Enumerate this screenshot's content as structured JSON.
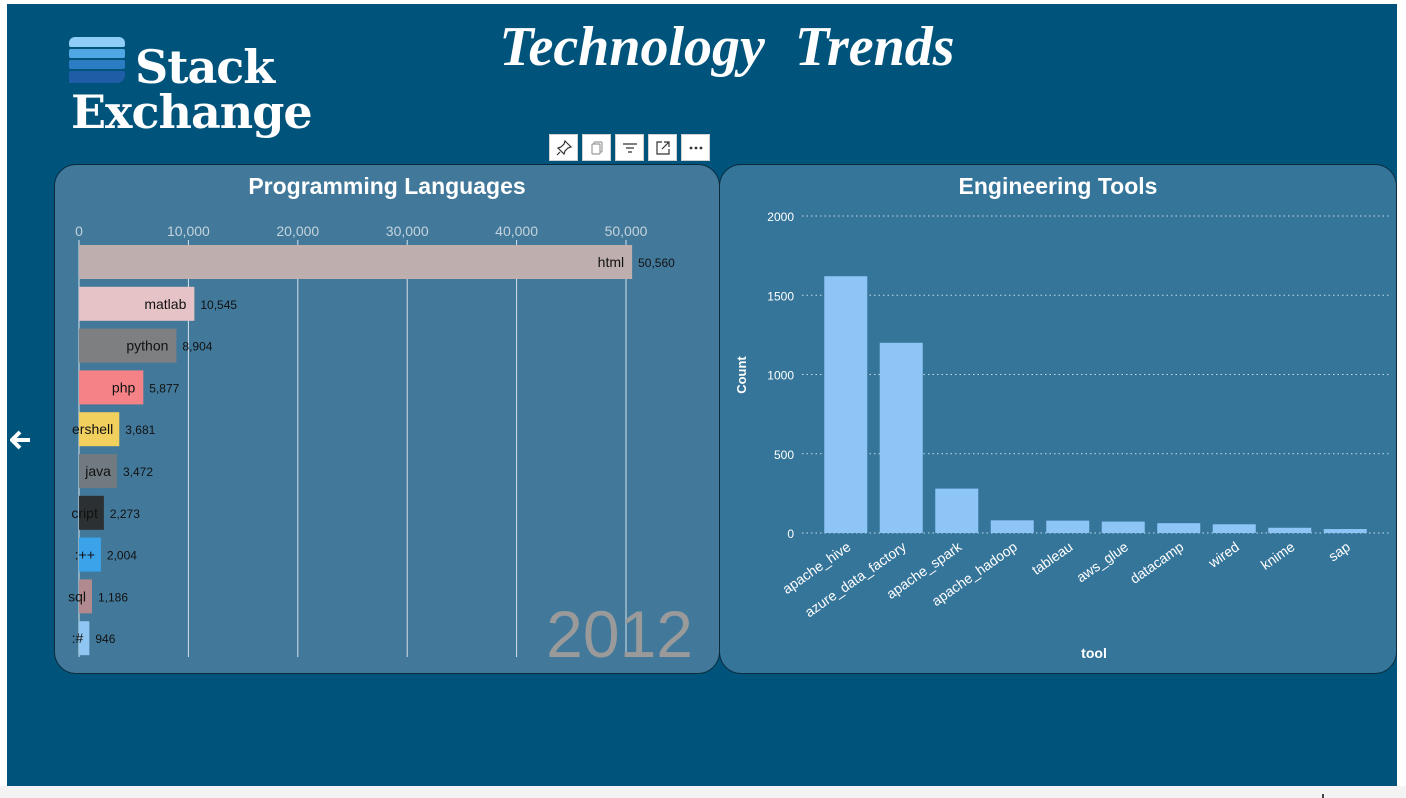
{
  "header": {
    "title": "Technology  Trends"
  },
  "logo": {
    "word1": "Stack",
    "word2": "Exchange",
    "colors": [
      "#8ecdf5",
      "#4fa8e3",
      "#2c7cc4",
      "#1f5ea6"
    ]
  },
  "toolbar": {
    "buttons": [
      "pin-icon",
      "copy-icon",
      "filter-icon",
      "focus-mode-icon",
      "more-options-icon"
    ]
  },
  "chart_data": [
    {
      "type": "bar",
      "orientation": "horizontal",
      "title": "Programming Languages",
      "period_label": "2012",
      "categories": [
        "html",
        "matlab",
        "python",
        "php",
        "powershell",
        "java",
        "javascript",
        "c++",
        "sql",
        "c#"
      ],
      "shown_labels": [
        "html",
        "matlab",
        "python",
        "php",
        "ershell",
        "java",
        "cript",
        ":++",
        "sql",
        ":#"
      ],
      "values": [
        50560,
        10545,
        8904,
        5877,
        3681,
        3472,
        2273,
        2004,
        1186,
        946
      ],
      "value_labels": [
        "50,560",
        "10,545",
        "8,904",
        "5,877",
        "3,681",
        "3,472",
        "2,273",
        "2,004",
        "1,186",
        "946"
      ],
      "colors": [
        "#bfaeae",
        "#e6c3c7",
        "#7d7f80",
        "#f48286",
        "#f1d05e",
        "#707a80",
        "#2b3133",
        "#3aa3ea",
        "#b08a8e",
        "#8fc6f2"
      ],
      "xlim": [
        0,
        55000
      ],
      "xticks": [
        0,
        10000,
        20000,
        30000,
        40000,
        50000
      ],
      "xtick_labels": [
        "0",
        "10,000",
        "20,000",
        "30,000",
        "40,000",
        "50,000"
      ]
    },
    {
      "type": "bar",
      "title": "Engineering Tools",
      "xlabel": "tool",
      "ylabel": "Count",
      "categories": [
        "apache_hive",
        "azure_data_factory",
        "apache_spark",
        "apache_hadoop",
        "tableau",
        "aws_glue",
        "datacamp",
        "wired",
        "knime",
        "sap"
      ],
      "values": [
        1620,
        1200,
        280,
        80,
        78,
        72,
        62,
        55,
        33,
        25
      ],
      "ylim": [
        0,
        2000
      ],
      "yticks": [
        0,
        500,
        1000,
        1500,
        2000
      ],
      "ytick_labels": [
        "0",
        "500",
        "1000",
        "1500",
        "2000"
      ],
      "bar_color": "#8ec5f7"
    }
  ]
}
